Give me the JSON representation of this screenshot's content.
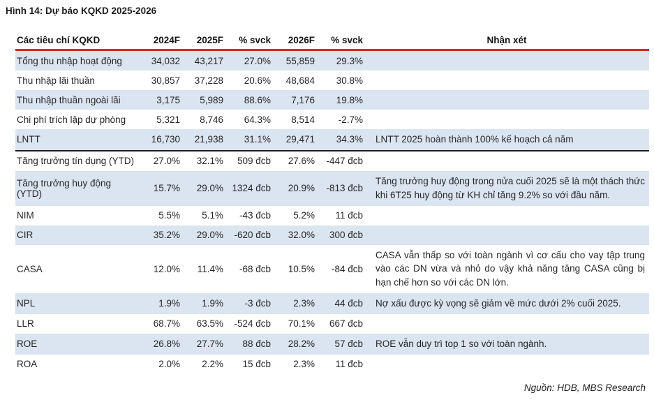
{
  "title": "Hình 14: Dự báo KQKD 2025-2026",
  "table": {
    "headers": [
      "Các tiêu chí KQKD",
      "2024F",
      "2025F",
      "% svck",
      "2026F",
      "% svck",
      "Nhận xét"
    ],
    "rows": [
      {
        "label": "Tổng thu nhập hoạt động",
        "values": [
          "34,032",
          "43,217",
          "27.0%",
          "55,859",
          "29.3%"
        ],
        "note": ""
      },
      {
        "label": "Thu nhập lãi thuần",
        "values": [
          "30,857",
          "37,228",
          "20.6%",
          "48,684",
          "30.8%"
        ],
        "note": ""
      },
      {
        "label": "Thu nhập thuần ngoài lãi",
        "values": [
          "3,175",
          "5,989",
          "88.6%",
          "7,176",
          "19.8%"
        ],
        "note": ""
      },
      {
        "label": "Chi phí trích lập dự phòng",
        "values": [
          "5,321",
          "8,746",
          "64.3%",
          "8,514",
          "-2.7%"
        ],
        "note": ""
      },
      {
        "label": "LNTT",
        "values": [
          "16,730",
          "21,938",
          "31.1%",
          "29,471",
          "34.3%"
        ],
        "note": "LNTT 2025 hoàn thành 100% kế hoạch cả năm",
        "divider_after": true
      },
      {
        "label": "Tăng trưởng tín dụng (YTD)",
        "values": [
          "27.0%",
          "32.1%",
          "509 đcb",
          "27.6%",
          "-447 đcb"
        ],
        "note": ""
      },
      {
        "label": "Tăng trưởng huy động (YTD)",
        "values": [
          "15.7%",
          "29.0%",
          "1324 đcb",
          "20.9%",
          "-813 đcb"
        ],
        "note": "Tăng trưởng huy động trong nửa cuối 2025 sẽ là một thách thức khi 6T25 huy động từ KH chỉ tăng 9.2% so với đầu năm."
      },
      {
        "label": "NIM",
        "values": [
          "5.5%",
          "5.1%",
          "-43 đcb",
          "5.2%",
          "11 đcb"
        ],
        "note": ""
      },
      {
        "label": "CIR",
        "values": [
          "35.2%",
          "29.0%",
          "-620 đcb",
          "32.0%",
          "300 đcb"
        ],
        "note": ""
      },
      {
        "label": "CASA",
        "values": [
          "12.0%",
          "11.4%",
          "-68 đcb",
          "10.5%",
          "-84 đcb"
        ],
        "note": "CASA vẫn thấp so với toàn ngành vì cơ cấu cho vay tập trung vào các DN vừa và nhỏ do vậy khả năng tăng CASA cũng bị hạn chế hơn so với các DN lớn."
      },
      {
        "label": "NPL",
        "values": [
          "1.9%",
          "1.9%",
          "-3 đcb",
          "2.3%",
          "44 đcb"
        ],
        "note": "Nợ xấu được kỳ vọng sẽ giảm về mức dưới 2% cuối 2025."
      },
      {
        "label": "LLR",
        "values": [
          "68.7%",
          "63.5%",
          "-524 đcb",
          "70.1%",
          "667 đcb"
        ],
        "note": ""
      },
      {
        "label": "ROE",
        "values": [
          "26.8%",
          "27.7%",
          "88 đcb",
          "28.2%",
          "57 đcb"
        ],
        "note": "ROE vẫn duy trì top 1 so với toàn ngành."
      },
      {
        "label": "ROA",
        "values": [
          "2.0%",
          "2.2%",
          "15 đcb",
          "2.3%",
          "11 đcb"
        ],
        "note": ""
      }
    ]
  },
  "source": "Nguồn: HDB, MBS Research",
  "colors": {
    "accent_red": "#d22a2a",
    "row_alt": "#dbe4f1",
    "divider": "#1a1a1a",
    "text": "#262626"
  }
}
